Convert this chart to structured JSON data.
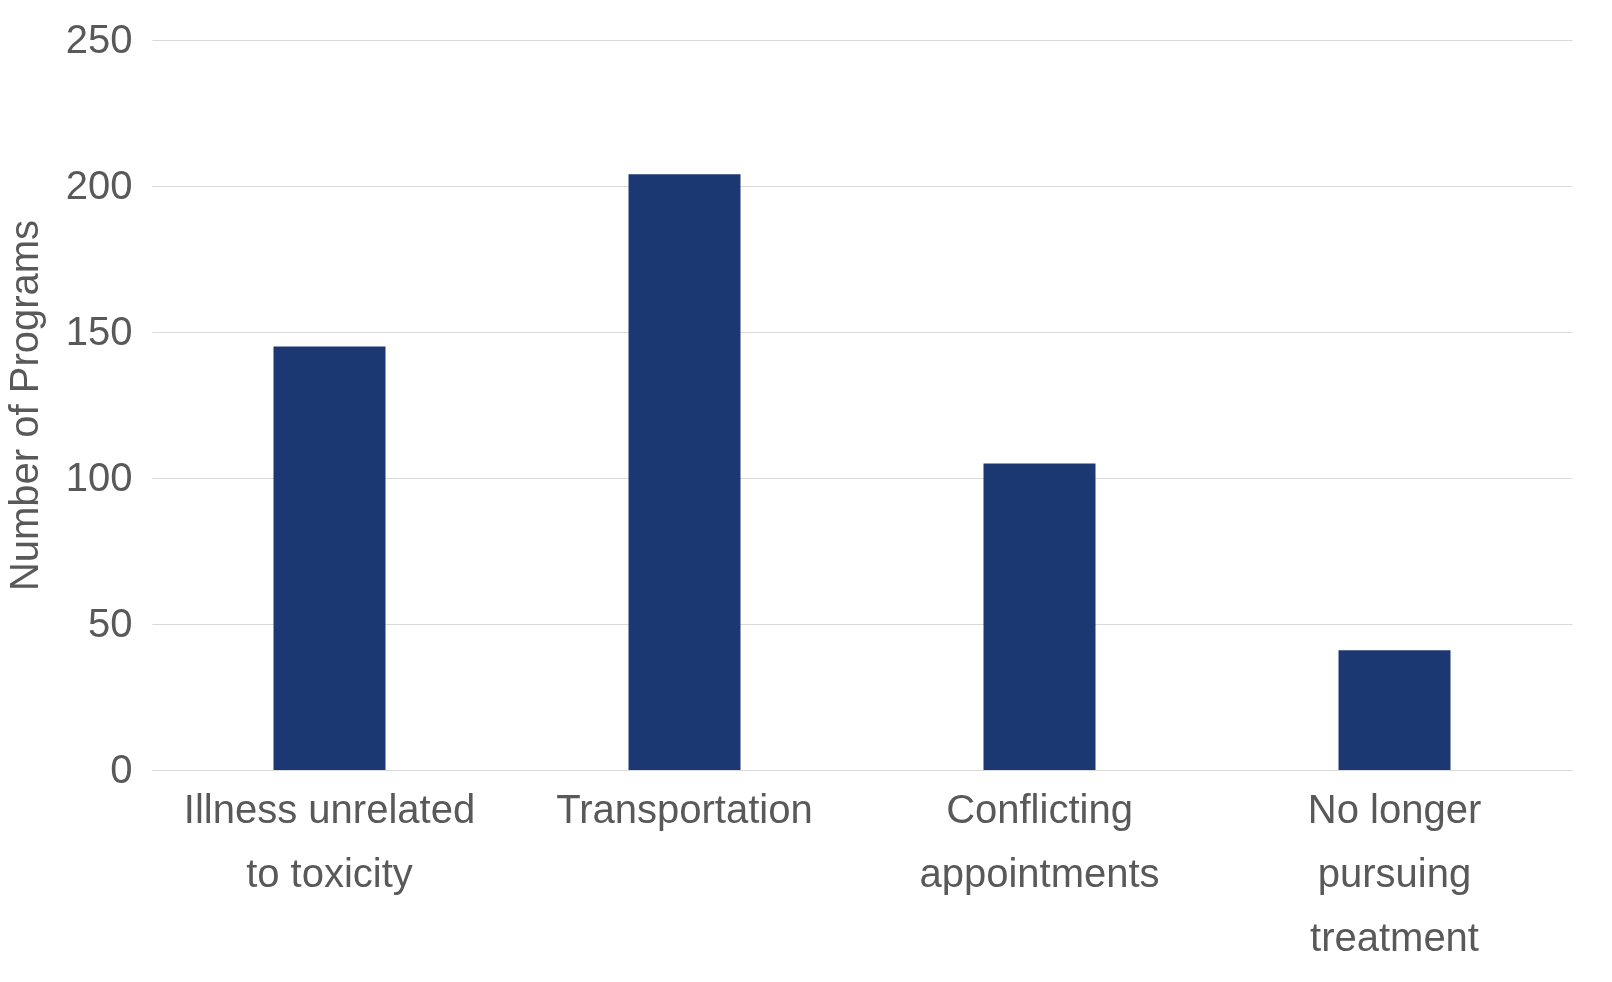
{
  "chart_data": {
    "type": "bar",
    "ylabel": "Number of Programs",
    "categories": [
      "Illness unrelated to toxicity",
      "Transportation",
      "Conflicting appointments",
      "No longer pursuing treatment"
    ],
    "values": [
      145,
      204,
      105,
      41
    ],
    "color": "#1c3873",
    "ylim": [
      0,
      250
    ],
    "yticks": [
      0,
      50,
      100,
      150,
      200,
      250
    ],
    "grid": "y"
  }
}
